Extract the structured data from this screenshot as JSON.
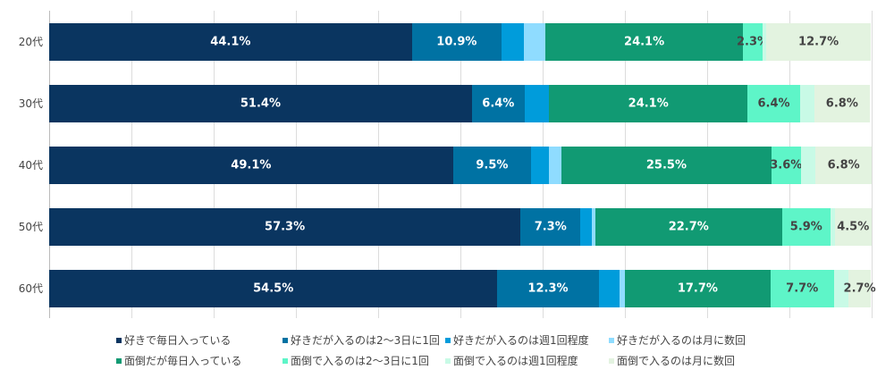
{
  "chart_data": {
    "type": "bar",
    "orientation": "horizontal",
    "stacked": true,
    "xlim": [
      0,
      100
    ],
    "grid": true,
    "legend_position": "bottom",
    "categories": [
      "20代",
      "30代",
      "40代",
      "50代",
      "60代"
    ],
    "series": [
      {
        "name": "好きで毎日入っている",
        "color": "#0a3560",
        "text": "#ffffff",
        "values": [
          44.1,
          51.4,
          49.1,
          57.3,
          54.5
        ],
        "labels": [
          "44.1%",
          "51.4%",
          "49.1%",
          "57.3%",
          "54.5%"
        ]
      },
      {
        "name": "好きだが入るのは2～3日に1回",
        "color": "#0072a3",
        "text": "#ffffff",
        "values": [
          10.9,
          6.4,
          9.5,
          7.3,
          12.3
        ],
        "labels": [
          "10.9%",
          "6.4%",
          "9.5%",
          "7.3%",
          "12.3%"
        ]
      },
      {
        "name": "好きだが入るのは週1回程度",
        "color": "#009cdb",
        "text": "#ffffff",
        "values": [
          2.7,
          3.0,
          2.2,
          1.4,
          2.6
        ],
        "labels": [
          "",
          "",
          "",
          "",
          ""
        ]
      },
      {
        "name": "好きだが入るのは月に数回",
        "color": "#8fdcff",
        "text": "#444444",
        "values": [
          2.6,
          0.0,
          1.5,
          0.4,
          0.6
        ],
        "labels": [
          "",
          "",
          "",
          "",
          ""
        ]
      },
      {
        "name": "面倒だが毎日入っている",
        "color": "#119a73",
        "text": "#ffffff",
        "values": [
          24.1,
          24.1,
          25.5,
          22.7,
          17.7
        ],
        "labels": [
          "24.1%",
          "24.1%",
          "25.5%",
          "22.7%",
          "17.7%"
        ]
      },
      {
        "name": "面倒で入るのは2～3日に1回",
        "color": "#5ef5c8",
        "text": "#444444",
        "values": [
          2.3,
          6.4,
          3.6,
          5.9,
          7.7
        ],
        "labels": [
          "2.3%",
          "6.4%",
          "3.6%",
          "5.9%",
          "7.7%"
        ]
      },
      {
        "name": "面倒で入るのは週1回程度",
        "color": "#c8fae6",
        "text": "#444444",
        "values": [
          0.5,
          1.7,
          1.8,
          0.5,
          1.8
        ],
        "labels": [
          "",
          "",
          "",
          "",
          ""
        ]
      },
      {
        "name": "面倒で入るのは月に数回",
        "color": "#e3f3e0",
        "text": "#444444",
        "values": [
          12.7,
          6.8,
          6.8,
          4.5,
          2.7
        ],
        "labels": [
          "12.7%",
          "6.8%",
          "6.8%",
          "4.5%",
          "2.7%"
        ]
      }
    ]
  }
}
